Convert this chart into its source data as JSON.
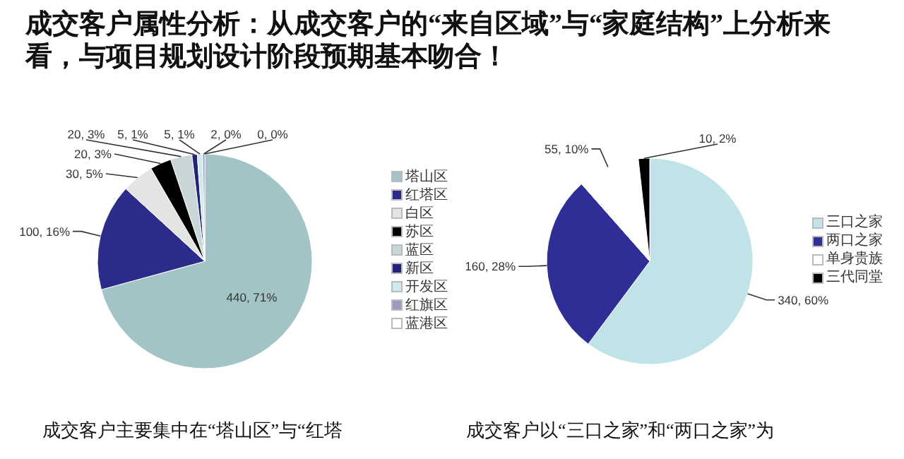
{
  "chart_data": [
    {
      "type": "pie",
      "title": "成交客户属性分析：从成交客户的“来自区域”与“家庭结构”上分析来看，与项目规划设计阶段预期基本吻合！",
      "categories": [
        "塔山区",
        "红塔区",
        "白区",
        "苏区",
        "蓝区",
        "新区",
        "开发区",
        "红旗区",
        "蓝港区"
      ],
      "values": [
        440,
        100,
        30,
        20,
        20,
        5,
        5,
        2,
        0
      ],
      "colors": [
        "#a3c4c6",
        "#2b2b8a",
        "#e4e4e4",
        "#000000",
        "#c9d6d8",
        "#23237a",
        "#cfe9ec",
        "#9a9ac0",
        "#ffffff"
      ],
      "value_labels": [
        "440, 71%",
        "100, 16%",
        "30, 5%",
        "20, 3%",
        "20, 3%",
        "5, 1%",
        "5, 1%",
        "2, 0%",
        "0, 0%"
      ],
      "legend": "right",
      "annotations": [
        "成交客户主要集中在“塔山区”与“红塔"
      ]
    },
    {
      "type": "pie",
      "categories": [
        "三口之家",
        "两口之家",
        "单身贵族",
        "三代同堂"
      ],
      "values": [
        340,
        160,
        55,
        10
      ],
      "colors": [
        "#bfe3e6",
        "#2e2e96",
        "#ffffff",
        "#000000"
      ],
      "value_labels": [
        "340, 60%",
        "160, 28%",
        "55, 10%",
        "10, 2%"
      ],
      "legend": "right",
      "annotations": [
        "成交客户以“三口之家”和“两口之家”为"
      ]
    }
  ]
}
